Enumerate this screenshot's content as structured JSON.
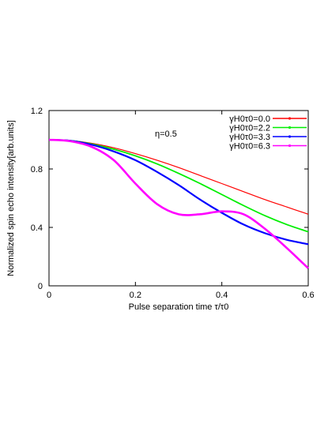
{
  "chart_data": {
    "type": "line",
    "title": "",
    "xlabel": "Pulse separation time τ/τ0",
    "ylabel": "Normalized spin echo intensity[arb.units]",
    "xlim": [
      0,
      0.6
    ],
    "ylim": [
      0,
      1.2
    ],
    "x_ticks": [
      "0",
      "0.2",
      "0.4",
      "0.6"
    ],
    "y_ticks": [
      "0",
      "0.4",
      "0.8",
      "1.2"
    ],
    "grid": false,
    "legend_position": "top-right",
    "annotation": "η=0.5",
    "x": [
      0,
      0.05,
      0.1,
      0.15,
      0.2,
      0.25,
      0.3,
      0.35,
      0.4,
      0.45,
      0.5,
      0.55,
      0.6
    ],
    "series": [
      {
        "name": "γH0τ0=0.0",
        "color": "#ff0000",
        "values": [
          1.0,
          0.995,
          0.975,
          0.945,
          0.905,
          0.86,
          0.81,
          0.755,
          0.7,
          0.645,
          0.59,
          0.54,
          0.49
        ]
      },
      {
        "name": "γH0τ0=2.2",
        "color": "#00ee00",
        "values": [
          1.0,
          0.994,
          0.97,
          0.935,
          0.89,
          0.835,
          0.77,
          0.7,
          0.625,
          0.55,
          0.48,
          0.42,
          0.37
        ]
      },
      {
        "name": "γH0τ0=3.3",
        "color": "#0000ff",
        "values": [
          1.0,
          0.993,
          0.965,
          0.92,
          0.86,
          0.78,
          0.69,
          0.59,
          0.5,
          0.42,
          0.36,
          0.315,
          0.285
        ]
      },
      {
        "name": "γH0τ0=6.3",
        "color": "#ff00ff",
        "values": [
          1.0,
          0.99,
          0.95,
          0.86,
          0.7,
          0.56,
          0.49,
          0.49,
          0.51,
          0.49,
          0.39,
          0.26,
          0.12
        ]
      }
    ]
  }
}
